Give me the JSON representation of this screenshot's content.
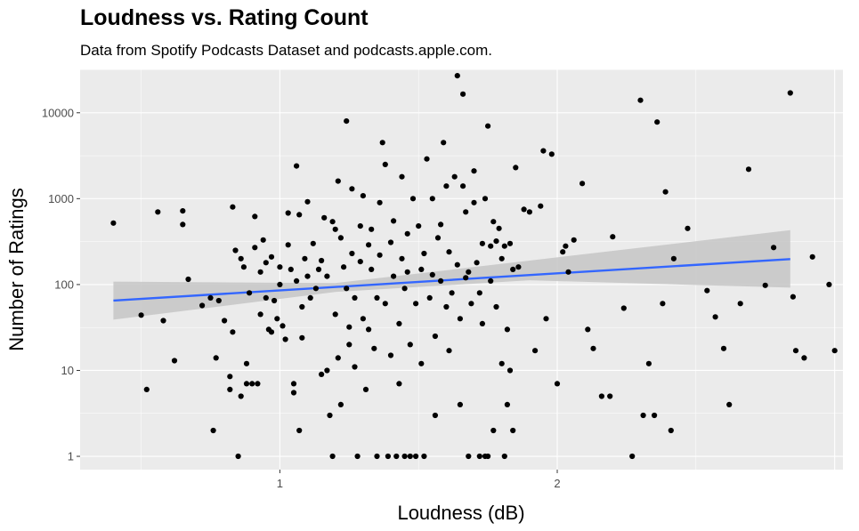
{
  "chart_data": {
    "type": "scatter",
    "title": "Loudness vs. Rating Count",
    "subtitle": "Data from Spotify Podcasts Dataset and podcasts.apple.com.",
    "xlabel": "Loudness (dB)",
    "ylabel": "Number of Ratings",
    "xlim": [
      0.28,
      3.03
    ],
    "ylim": [
      0.7,
      32000
    ],
    "y_scale": "log10",
    "x_ticks": [
      1,
      2
    ],
    "x_tick_labels": [
      "1",
      "2"
    ],
    "y_ticks": [
      1,
      10,
      100,
      1000,
      10000
    ],
    "y_tick_labels": [
      "1",
      "10",
      "100",
      "1000",
      "10000"
    ],
    "grid": true,
    "legend": "none",
    "colors": {
      "panel": "#ebebeb",
      "grid": "#ffffff",
      "point": "#000000",
      "trend": "#3366ff",
      "band": "#c6c6c6"
    },
    "trend_line": {
      "x": [
        0.4,
        2.84
      ],
      "y": [
        65,
        198
      ]
    },
    "confidence_band": {
      "x": [
        0.4,
        1.2,
        1.9,
        2.84
      ],
      "lower": [
        39,
        82,
        112,
        92
      ],
      "upper": [
        108,
        104,
        190,
        430
      ]
    },
    "points": [
      [
        0.4,
        520
      ],
      [
        0.5,
        44
      ],
      [
        0.52,
        6
      ],
      [
        0.56,
        700
      ],
      [
        0.58,
        38
      ],
      [
        0.62,
        13
      ],
      [
        0.65,
        720
      ],
      [
        0.65,
        500
      ],
      [
        0.67,
        115
      ],
      [
        0.72,
        57
      ],
      [
        0.75,
        70
      ],
      [
        0.76,
        2
      ],
      [
        0.77,
        14
      ],
      [
        0.78,
        65
      ],
      [
        0.8,
        38
      ],
      [
        0.82,
        8.5
      ],
      [
        0.82,
        6
      ],
      [
        0.83,
        28
      ],
      [
        0.83,
        800
      ],
      [
        0.84,
        250
      ],
      [
        0.85,
        1
      ],
      [
        0.86,
        200
      ],
      [
        0.86,
        5
      ],
      [
        0.87,
        160
      ],
      [
        0.88,
        12
      ],
      [
        0.88,
        7
      ],
      [
        0.89,
        80
      ],
      [
        0.9,
        7
      ],
      [
        0.91,
        620
      ],
      [
        0.91,
        270
      ],
      [
        0.92,
        7
      ],
      [
        0.93,
        140
      ],
      [
        0.93,
        45
      ],
      [
        0.94,
        330
      ],
      [
        0.95,
        70
      ],
      [
        0.95,
        180
      ],
      [
        0.96,
        30
      ],
      [
        0.97,
        28
      ],
      [
        0.97,
        210
      ],
      [
        0.98,
        65
      ],
      [
        0.99,
        40
      ],
      [
        1.0,
        160
      ],
      [
        1.0,
        100
      ],
      [
        1.01,
        33
      ],
      [
        1.02,
        23
      ],
      [
        1.03,
        680
      ],
      [
        1.03,
        290
      ],
      [
        1.04,
        150
      ],
      [
        1.05,
        7
      ],
      [
        1.05,
        5.5
      ],
      [
        1.06,
        2400
      ],
      [
        1.06,
        110
      ],
      [
        1.07,
        2
      ],
      [
        1.07,
        650
      ],
      [
        1.08,
        24
      ],
      [
        1.08,
        55
      ],
      [
        1.09,
        200
      ],
      [
        1.1,
        920
      ],
      [
        1.1,
        125
      ],
      [
        1.11,
        70
      ],
      [
        1.12,
        300
      ],
      [
        1.13,
        90
      ],
      [
        1.14,
        150
      ],
      [
        1.15,
        190
      ],
      [
        1.15,
        9
      ],
      [
        1.16,
        600
      ],
      [
        1.17,
        125
      ],
      [
        1.17,
        10
      ],
      [
        1.18,
        3
      ],
      [
        1.19,
        1
      ],
      [
        1.19,
        540
      ],
      [
        1.2,
        440
      ],
      [
        1.2,
        45
      ],
      [
        1.21,
        14
      ],
      [
        1.21,
        1600
      ],
      [
        1.22,
        350
      ],
      [
        1.22,
        4
      ],
      [
        1.23,
        160
      ],
      [
        1.24,
        8000
      ],
      [
        1.24,
        90
      ],
      [
        1.25,
        32
      ],
      [
        1.25,
        20
      ],
      [
        1.26,
        1300
      ],
      [
        1.26,
        230
      ],
      [
        1.27,
        70
      ],
      [
        1.27,
        11
      ],
      [
        1.28,
        1
      ],
      [
        1.29,
        185
      ],
      [
        1.29,
        480
      ],
      [
        1.3,
        1080
      ],
      [
        1.3,
        40
      ],
      [
        1.31,
        6
      ],
      [
        1.32,
        290
      ],
      [
        1.32,
        30
      ],
      [
        1.33,
        440
      ],
      [
        1.33,
        150
      ],
      [
        1.34,
        18
      ],
      [
        1.35,
        70
      ],
      [
        1.35,
        1
      ],
      [
        1.36,
        220
      ],
      [
        1.36,
        900
      ],
      [
        1.37,
        4500
      ],
      [
        1.38,
        2500
      ],
      [
        1.38,
        60
      ],
      [
        1.39,
        1
      ],
      [
        1.4,
        15
      ],
      [
        1.4,
        310
      ],
      [
        1.41,
        125
      ],
      [
        1.41,
        550
      ],
      [
        1.42,
        1
      ],
      [
        1.43,
        7
      ],
      [
        1.43,
        35
      ],
      [
        1.44,
        1800
      ],
      [
        1.44,
        200
      ],
      [
        1.45,
        90
      ],
      [
        1.45,
        1
      ],
      [
        1.46,
        390
      ],
      [
        1.46,
        140
      ],
      [
        1.47,
        1
      ],
      [
        1.47,
        20
      ],
      [
        1.48,
        1000
      ],
      [
        1.49,
        60
      ],
      [
        1.49,
        1
      ],
      [
        1.5,
        480
      ],
      [
        1.51,
        150
      ],
      [
        1.51,
        12
      ],
      [
        1.52,
        1
      ],
      [
        1.52,
        230
      ],
      [
        1.53,
        2900
      ],
      [
        1.54,
        70
      ],
      [
        1.55,
        130
      ],
      [
        1.55,
        1000
      ],
      [
        1.56,
        25
      ],
      [
        1.56,
        3
      ],
      [
        1.57,
        350
      ],
      [
        1.58,
        500
      ],
      [
        1.58,
        110
      ],
      [
        1.59,
        4500
      ],
      [
        1.6,
        55
      ],
      [
        1.6,
        1400
      ],
      [
        1.61,
        17
      ],
      [
        1.61,
        240
      ],
      [
        1.62,
        80
      ],
      [
        1.63,
        1800
      ],
      [
        1.64,
        27000
      ],
      [
        1.64,
        170
      ],
      [
        1.65,
        4
      ],
      [
        1.65,
        40
      ],
      [
        1.66,
        16500
      ],
      [
        1.66,
        1400
      ],
      [
        1.67,
        700
      ],
      [
        1.67,
        120
      ],
      [
        1.68,
        140
      ],
      [
        1.68,
        1
      ],
      [
        1.69,
        60
      ],
      [
        1.7,
        2100
      ],
      [
        1.7,
        900
      ],
      [
        1.71,
        180
      ],
      [
        1.72,
        1
      ],
      [
        1.72,
        80
      ],
      [
        1.73,
        35
      ],
      [
        1.73,
        300
      ],
      [
        1.74,
        1000
      ],
      [
        1.74,
        1
      ],
      [
        1.75,
        7000
      ],
      [
        1.75,
        1
      ],
      [
        1.76,
        110
      ],
      [
        1.76,
        280
      ],
      [
        1.77,
        2
      ],
      [
        1.77,
        540
      ],
      [
        1.78,
        320
      ],
      [
        1.78,
        55
      ],
      [
        1.79,
        450
      ],
      [
        1.8,
        200
      ],
      [
        1.8,
        12
      ],
      [
        1.81,
        1
      ],
      [
        1.81,
        280
      ],
      [
        1.82,
        4
      ],
      [
        1.82,
        30
      ],
      [
        1.83,
        300
      ],
      [
        1.83,
        10
      ],
      [
        1.84,
        150
      ],
      [
        1.84,
        2
      ],
      [
        1.85,
        2300
      ],
      [
        1.86,
        160
      ],
      [
        1.88,
        750
      ],
      [
        1.9,
        700
      ],
      [
        1.92,
        17
      ],
      [
        1.94,
        820
      ],
      [
        1.95,
        3600
      ],
      [
        1.96,
        40
      ],
      [
        1.98,
        3300
      ],
      [
        2.0,
        7
      ],
      [
        2.02,
        240
      ],
      [
        2.03,
        280
      ],
      [
        2.04,
        140
      ],
      [
        2.06,
        330
      ],
      [
        2.09,
        1500
      ],
      [
        2.11,
        30
      ],
      [
        2.13,
        18
      ],
      [
        2.16,
        5
      ],
      [
        2.19,
        5
      ],
      [
        2.2,
        360
      ],
      [
        2.24,
        53
      ],
      [
        2.27,
        1
      ],
      [
        2.3,
        14000
      ],
      [
        2.31,
        3
      ],
      [
        2.33,
        12
      ],
      [
        2.35,
        3
      ],
      [
        2.36,
        7800
      ],
      [
        2.38,
        60
      ],
      [
        2.39,
        1200
      ],
      [
        2.41,
        2
      ],
      [
        2.42,
        200
      ],
      [
        2.47,
        450
      ],
      [
        2.54,
        85
      ],
      [
        2.57,
        42
      ],
      [
        2.6,
        18
      ],
      [
        2.62,
        4
      ],
      [
        2.66,
        60
      ],
      [
        2.69,
        2200
      ],
      [
        2.75,
        98
      ],
      [
        2.78,
        270
      ],
      [
        2.84,
        17000
      ],
      [
        2.85,
        72
      ],
      [
        2.86,
        17
      ],
      [
        2.89,
        14
      ],
      [
        2.92,
        210
      ],
      [
        2.98,
        100
      ],
      [
        3.0,
        17
      ]
    ]
  }
}
